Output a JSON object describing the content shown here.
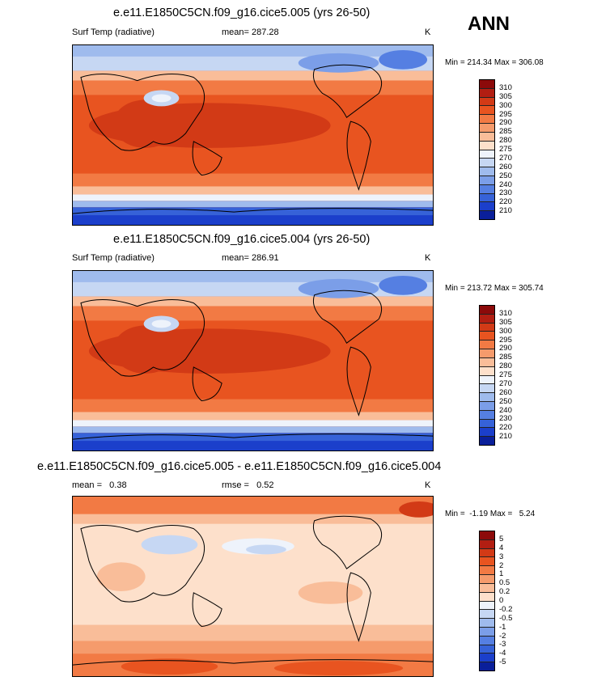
{
  "season": "ANN",
  "panels": [
    {
      "title": "e.e11.E1850C5CN.f09_g16.cice5.005 (yrs 26-50)",
      "left_label": "Surf Temp (radiative)",
      "center_label": "mean= 287.28",
      "right_label": "K",
      "minmax": "Min = 214.34 Max = 306.08"
    },
    {
      "title": "e.e11.E1850C5CN.f09_g16.cice5.004 (yrs 26-50)",
      "left_label": "Surf Temp (radiative)",
      "center_label": "mean= 286.91",
      "right_label": "K",
      "minmax": "Min = 213.72 Max = 305.74"
    },
    {
      "title": "e.e11.E1850C5CN.f09_g16.cice5.005 - e.e11.E1850C5CN.f09_g16.cice5.004",
      "left_label": "mean =   0.38",
      "center_label": "rmse =   0.52",
      "right_label": "K",
      "minmax": "Min =  -1.19 Max =   5.24"
    }
  ],
  "temp_colorbar": {
    "labels": [
      "310",
      "305",
      "300",
      "295",
      "290",
      "285",
      "280",
      "275",
      "270",
      "260",
      "250",
      "240",
      "230",
      "220",
      "210"
    ],
    "colors": [
      "#8c0a0a",
      "#b21e12",
      "#d23a16",
      "#e85420",
      "#f27a44",
      "#f59b6c",
      "#f9bd99",
      "#fde0cb",
      "#eef3fb",
      "#c6d7f3",
      "#9fbbed",
      "#7b9ee8",
      "#557fe2",
      "#3662d8",
      "#1b3fcb",
      "#0a1f9a"
    ]
  },
  "diff_colorbar": {
    "labels": [
      "5",
      "4",
      "3",
      "2",
      "1",
      "0.5",
      "0.2",
      "0",
      "-0.2",
      "-0.5",
      "-1",
      "-2",
      "-3",
      "-4",
      "-5"
    ],
    "colors": [
      "#8c0a0a",
      "#b21e12",
      "#d23a16",
      "#e85420",
      "#f27a44",
      "#f59b6c",
      "#f9bd99",
      "#fde0cb",
      "#eef3fb",
      "#c6d7f3",
      "#9fbbed",
      "#7b9ee8",
      "#557fe2",
      "#3662d8",
      "#1b3fcb",
      "#0a1f9a"
    ]
  }
}
